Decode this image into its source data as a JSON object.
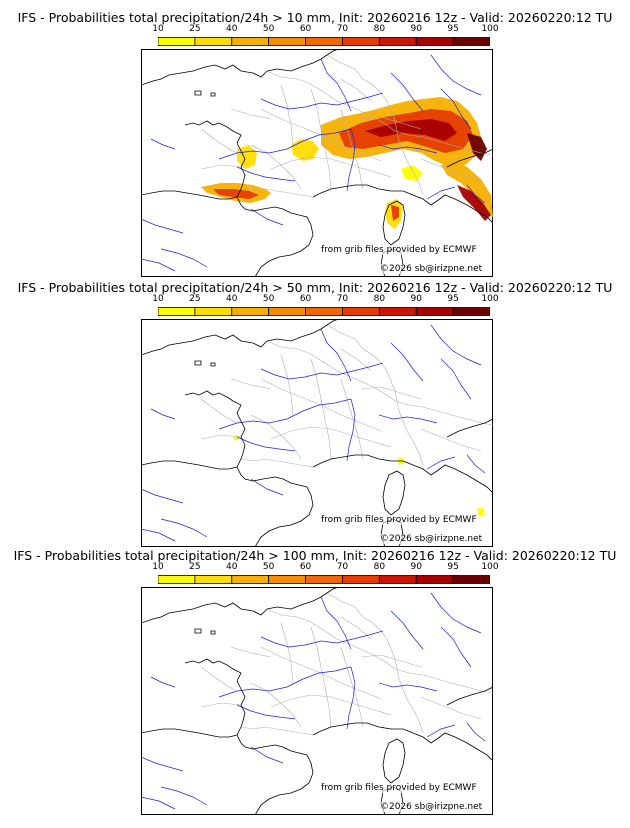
{
  "scale": {
    "ticks": [
      "10",
      "25",
      "40",
      "50",
      "60",
      "70",
      "80",
      "90",
      "95",
      "100"
    ],
    "colors": [
      "#ffff00",
      "#ffdd00",
      "#f5b000",
      "#f39000",
      "#ee6800",
      "#e53c00",
      "#cc1500",
      "#a60000",
      "#6a0000"
    ]
  },
  "credits": {
    "source": "from grib files provided by ECMWF",
    "copyright": "©2026 sb@irizpne.net"
  },
  "panels": [
    {
      "title": "IFS - Probabilities total precipitation/24h > 10 mm, Init: 20260216 12z - Valid: 20260220:12 TU"
    },
    {
      "title": "IFS - Probabilities total precipitation/24h > 50 mm, Init: 20260216 12z - Valid: 20260220:12 TU"
    },
    {
      "title": "IFS - Probabilities total precipitation/24h > 100 mm, Init: 20260216 12z - Valid: 20260220:12 TU"
    }
  ],
  "colors": {
    "coast": "#000000",
    "rivers": "#2020dd",
    "borders": "#b0b0b0"
  }
}
